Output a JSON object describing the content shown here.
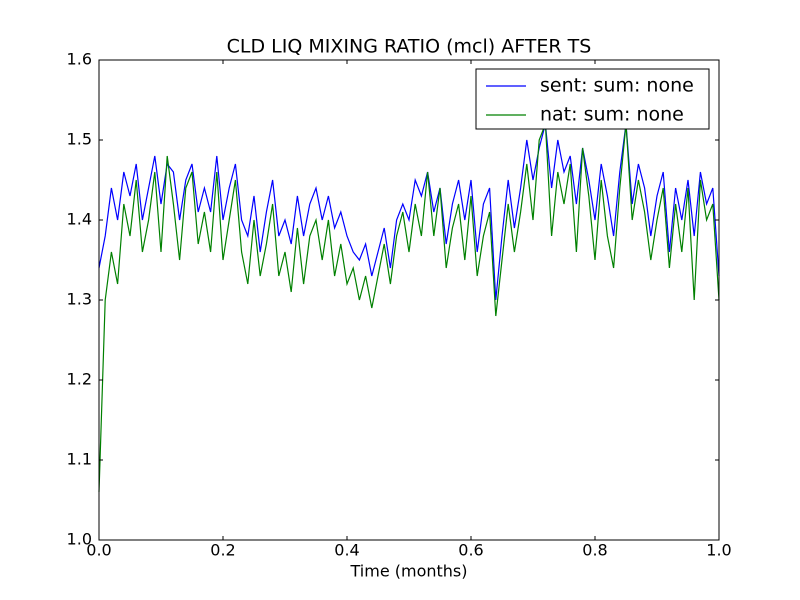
{
  "chart_data": {
    "type": "line",
    "title": "CLD LIQ MIXING RATIO (mcl) AFTER TS",
    "x_label": "Time (months)",
    "x": [
      0,
      0.01,
      0.02,
      0.03,
      0.04,
      0.05,
      0.06,
      0.07,
      0.08,
      0.09,
      0.1,
      0.11,
      0.12,
      0.13,
      0.14,
      0.15,
      0.16,
      0.17,
      0.18,
      0.19,
      0.2,
      0.21,
      0.22,
      0.23,
      0.24,
      0.25,
      0.26,
      0.27,
      0.28,
      0.29,
      0.3,
      0.31,
      0.32,
      0.33,
      0.34,
      0.35,
      0.36,
      0.37,
      0.38,
      0.39,
      0.4,
      0.41,
      0.42,
      0.43,
      0.44,
      0.45,
      0.46,
      0.47,
      0.48,
      0.49,
      0.5,
      0.51,
      0.52,
      0.53,
      0.54,
      0.55,
      0.56,
      0.57,
      0.58,
      0.59,
      0.6,
      0.61,
      0.62,
      0.63,
      0.64,
      0.65,
      0.66,
      0.67,
      0.68,
      0.69,
      0.7,
      0.71,
      0.72,
      0.73,
      0.74,
      0.75,
      0.76,
      0.77,
      0.78,
      0.79,
      0.8,
      0.81,
      0.82,
      0.83,
      0.84,
      0.85,
      0.86,
      0.87,
      0.88,
      0.89,
      0.9,
      0.91,
      0.92,
      0.93,
      0.94,
      0.95,
      0.96,
      0.97,
      0.98,
      0.99,
      1
    ],
    "series": [
      {
        "name": "sent: sum: none",
        "color": "#0000ff",
        "values": [
          1.34,
          1.38,
          1.44,
          1.4,
          1.46,
          1.43,
          1.47,
          1.4,
          1.44,
          1.48,
          1.42,
          1.47,
          1.46,
          1.4,
          1.45,
          1.47,
          1.41,
          1.44,
          1.41,
          1.48,
          1.4,
          1.44,
          1.47,
          1.4,
          1.38,
          1.43,
          1.36,
          1.41,
          1.45,
          1.38,
          1.4,
          1.37,
          1.43,
          1.38,
          1.42,
          1.44,
          1.4,
          1.43,
          1.39,
          1.41,
          1.38,
          1.36,
          1.35,
          1.37,
          1.33,
          1.36,
          1.39,
          1.34,
          1.4,
          1.42,
          1.4,
          1.45,
          1.43,
          1.46,
          1.41,
          1.44,
          1.37,
          1.42,
          1.45,
          1.4,
          1.45,
          1.36,
          1.42,
          1.44,
          1.3,
          1.38,
          1.45,
          1.39,
          1.44,
          1.5,
          1.45,
          1.49,
          1.52,
          1.44,
          1.5,
          1.46,
          1.48,
          1.42,
          1.49,
          1.45,
          1.4,
          1.47,
          1.43,
          1.38,
          1.46,
          1.52,
          1.42,
          1.47,
          1.44,
          1.38,
          1.43,
          1.46,
          1.36,
          1.44,
          1.4,
          1.45,
          1.38,
          1.46,
          1.42,
          1.44,
          1.33
        ]
      },
      {
        "name": "nat: sum: none",
        "color": "#008000",
        "values": [
          1.06,
          1.3,
          1.36,
          1.32,
          1.42,
          1.38,
          1.45,
          1.36,
          1.4,
          1.46,
          1.36,
          1.48,
          1.42,
          1.35,
          1.44,
          1.46,
          1.37,
          1.41,
          1.36,
          1.46,
          1.35,
          1.4,
          1.45,
          1.36,
          1.32,
          1.4,
          1.33,
          1.37,
          1.42,
          1.33,
          1.36,
          1.31,
          1.39,
          1.32,
          1.38,
          1.4,
          1.35,
          1.4,
          1.33,
          1.37,
          1.32,
          1.34,
          1.3,
          1.33,
          1.29,
          1.33,
          1.37,
          1.32,
          1.38,
          1.41,
          1.36,
          1.42,
          1.38,
          1.46,
          1.38,
          1.44,
          1.34,
          1.39,
          1.42,
          1.35,
          1.43,
          1.33,
          1.38,
          1.41,
          1.28,
          1.35,
          1.42,
          1.36,
          1.41,
          1.47,
          1.4,
          1.5,
          1.52,
          1.38,
          1.46,
          1.42,
          1.47,
          1.36,
          1.49,
          1.43,
          1.35,
          1.45,
          1.38,
          1.34,
          1.44,
          1.52,
          1.4,
          1.45,
          1.41,
          1.35,
          1.4,
          1.44,
          1.34,
          1.42,
          1.36,
          1.44,
          1.3,
          1.45,
          1.4,
          1.42,
          1.3
        ]
      }
    ],
    "xlim": [
      0,
      1
    ],
    "ylim": [
      1,
      1.6
    ],
    "xticks": [
      {
        "value": 0,
        "label": "0.0"
      },
      0.2,
      0.4,
      0.6,
      0.8,
      {
        "value": 1,
        "label": "1.0"
      }
    ],
    "yticks": [
      {
        "value": 1,
        "label": "1.0"
      },
      1.1,
      1.2,
      1.3,
      1.4,
      1.5,
      1.6
    ],
    "legend": "upper right"
  }
}
